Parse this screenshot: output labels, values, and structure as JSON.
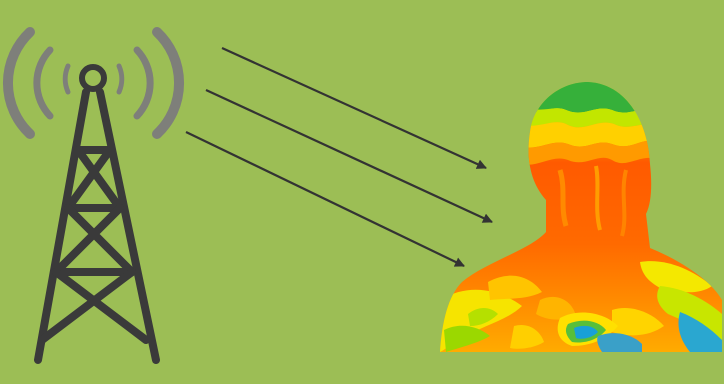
{
  "diagram": {
    "background_color": "#9cbe55",
    "tower": {
      "icon": "radio-tower-icon",
      "structure_color": "#3a3a3a",
      "signal_wave_color": "#7e7f7a",
      "signal_wave_count_per_side": 3
    },
    "radiation_arrows": {
      "count": 3,
      "color": "#333333",
      "direction": "from-tower-to-person"
    },
    "person": {
      "icon": "human-bust-thermal-icon",
      "thermal_palette": [
        "#ff4a00",
        "#ff6a00",
        "#ff9500",
        "#ffc200",
        "#f3ee00",
        "#b8e000",
        "#38b33a",
        "#00a1d8"
      ]
    }
  }
}
